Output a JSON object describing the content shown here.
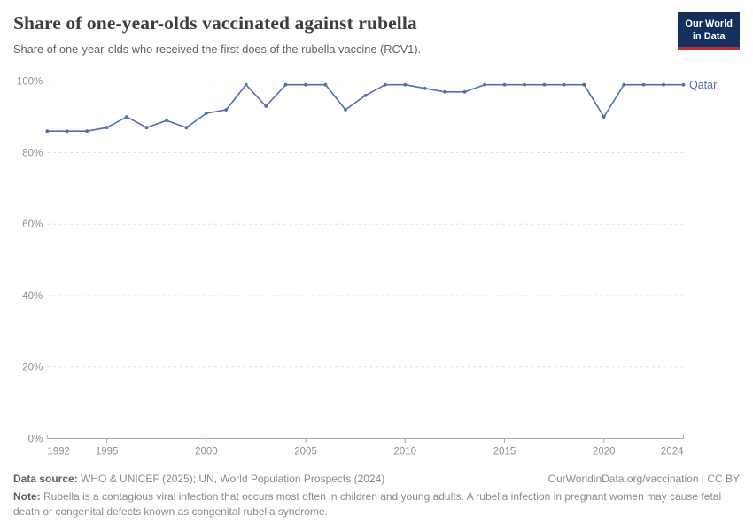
{
  "header": {
    "title": "Share of one-year-olds vaccinated against rubella",
    "subtitle": "Share of one-year-olds who received the first does of the rubella vaccine (RCV1).",
    "logo": {
      "line1": "Our World",
      "line2": "in Data",
      "bg_color": "#14305f",
      "accent_color": "#bf2e33"
    }
  },
  "chart_data": {
    "type": "line",
    "title": "Share of one-year-olds vaccinated against rubella",
    "xlabel": "",
    "ylabel": "",
    "x": [
      1992,
      1993,
      1994,
      1995,
      1996,
      1997,
      1998,
      1999,
      2000,
      2001,
      2002,
      2003,
      2004,
      2005,
      2006,
      2007,
      2008,
      2009,
      2010,
      2011,
      2012,
      2013,
      2014,
      2015,
      2016,
      2017,
      2018,
      2019,
      2020,
      2021,
      2022,
      2023,
      2024
    ],
    "series": [
      {
        "name": "Qatar",
        "color": "#5070ab",
        "values": [
          86,
          86,
          86,
          87,
          90,
          87,
          89,
          87,
          91,
          92,
          99,
          93,
          99,
          99,
          99,
          92,
          96,
          99,
          99,
          98,
          97,
          97,
          99,
          99,
          99,
          99,
          99,
          99,
          90,
          99,
          99,
          99,
          99
        ]
      }
    ],
    "xlim": [
      1992,
      2024
    ],
    "ylim": [
      0,
      100
    ],
    "xticks": [
      1992,
      1995,
      2000,
      2005,
      2010,
      2015,
      2020,
      2024
    ],
    "yticks": [
      0,
      20,
      40,
      60,
      80,
      100
    ],
    "ytick_suffix": "%",
    "grid": "horizontal dashed",
    "legend_position": "line-end-label"
  },
  "footer": {
    "data_source_label": "Data source:",
    "data_source_text": " WHO & UNICEF (2025); UN, World Population Prospects (2024)",
    "attribution": "OurWorldinData.org/vaccination | CC BY",
    "note_label": "Note:",
    "note_text": " Rubella is a contagious viral infection that occurs most often in children and young adults. A rubella infection in pregnant women may cause fetal death or congenital defects known as congenital rubella syndrome."
  }
}
